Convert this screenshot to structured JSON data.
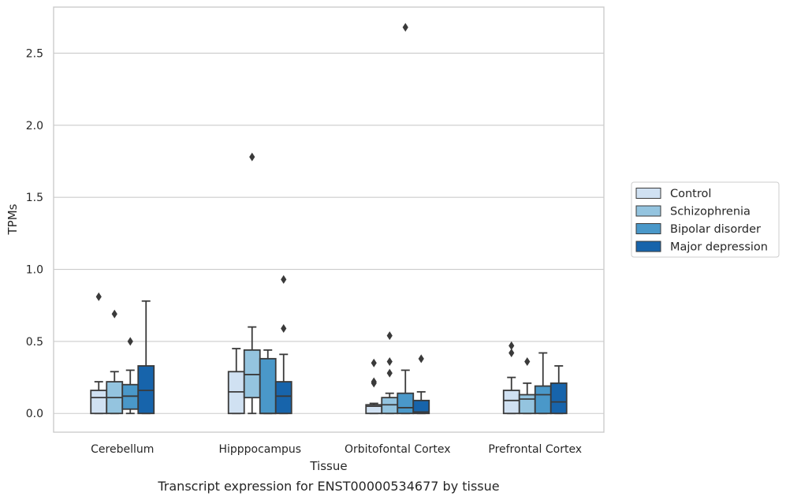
{
  "chart_data": {
    "type": "box",
    "title": "",
    "caption": "Transcript expression for ENST00000534677 by tissue",
    "xlabel": "Tissue",
    "ylabel": "TPMs",
    "ylim": [
      -0.13,
      2.82
    ],
    "yticks": [
      0.0,
      0.5,
      1.0,
      1.5,
      2.0,
      2.5
    ],
    "ytick_labels": [
      "0.0",
      "0.5",
      "1.0",
      "1.5",
      "2.0",
      "2.5"
    ],
    "grid": "horizontal",
    "legend_placement": "right, outside plot",
    "categories": [
      "Cerebellum",
      "Hipppocampus",
      "Orbitofontal Cortex",
      "Prefrontal Cortex"
    ],
    "series": [
      {
        "name": "Control",
        "color": "#d0e1f2",
        "boxes": [
          {
            "whislo": 0.0,
            "q1": 0.0,
            "med": 0.11,
            "q3": 0.16,
            "whishi": 0.22,
            "fliers": [
              0.81
            ]
          },
          {
            "whislo": 0.0,
            "q1": 0.0,
            "med": 0.15,
            "q3": 0.29,
            "whishi": 0.45,
            "fliers": []
          },
          {
            "whislo": 0.0,
            "q1": 0.0,
            "med": 0.05,
            "q3": 0.06,
            "whishi": 0.07,
            "fliers": [
              0.21,
              0.22,
              0.35
            ]
          },
          {
            "whislo": 0.0,
            "q1": 0.0,
            "med": 0.09,
            "q3": 0.16,
            "whishi": 0.25,
            "fliers": [
              0.42,
              0.47
            ]
          }
        ]
      },
      {
        "name": "Schizophrenia",
        "color": "#94c4df",
        "boxes": [
          {
            "whislo": 0.0,
            "q1": 0.0,
            "med": 0.11,
            "q3": 0.22,
            "whishi": 0.29,
            "fliers": [
              0.69
            ]
          },
          {
            "whislo": 0.0,
            "q1": 0.11,
            "med": 0.27,
            "q3": 0.44,
            "whishi": 0.6,
            "fliers": [
              1.78
            ]
          },
          {
            "whislo": 0.0,
            "q1": 0.0,
            "med": 0.06,
            "q3": 0.11,
            "whishi": 0.14,
            "fliers": [
              0.28,
              0.36,
              0.54
            ]
          },
          {
            "whislo": 0.0,
            "q1": 0.0,
            "med": 0.1,
            "q3": 0.13,
            "whishi": 0.21,
            "fliers": [
              0.36
            ]
          }
        ]
      },
      {
        "name": "Bipolar disorder",
        "color": "#4a98c9",
        "boxes": [
          {
            "whislo": 0.0,
            "q1": 0.03,
            "med": 0.12,
            "q3": 0.2,
            "whishi": 0.3,
            "fliers": [
              0.5
            ]
          },
          {
            "whislo": 0.0,
            "q1": 0.0,
            "med": 0.0,
            "q3": 0.38,
            "whishi": 0.44,
            "fliers": []
          },
          {
            "whislo": 0.0,
            "q1": 0.0,
            "med": 0.04,
            "q3": 0.14,
            "whishi": 0.3,
            "fliers": [
              2.68
            ]
          },
          {
            "whislo": 0.0,
            "q1": 0.0,
            "med": 0.13,
            "q3": 0.19,
            "whishi": 0.42,
            "fliers": []
          }
        ]
      },
      {
        "name": "Major depression",
        "color": "#1764ab",
        "boxes": [
          {
            "whislo": 0.0,
            "q1": 0.0,
            "med": 0.16,
            "q3": 0.33,
            "whishi": 0.78,
            "fliers": []
          },
          {
            "whislo": 0.0,
            "q1": 0.0,
            "med": 0.12,
            "q3": 0.22,
            "whishi": 0.41,
            "fliers": [
              0.59,
              0.93
            ]
          },
          {
            "whislo": 0.0,
            "q1": 0.0,
            "med": 0.01,
            "q3": 0.09,
            "whishi": 0.15,
            "fliers": [
              0.38
            ]
          },
          {
            "whislo": 0.0,
            "q1": 0.0,
            "med": 0.08,
            "q3": 0.21,
            "whishi": 0.33,
            "fliers": []
          }
        ]
      }
    ]
  }
}
